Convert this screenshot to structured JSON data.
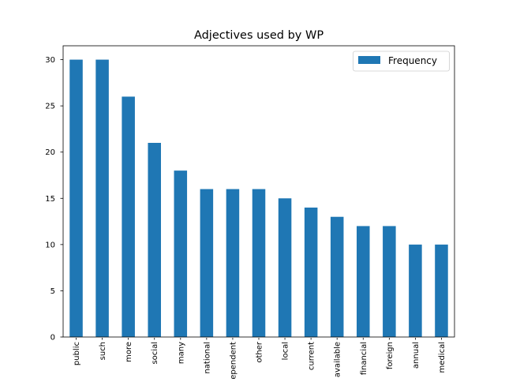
{
  "chart_data": {
    "type": "bar",
    "title": "Adjectives used by WP",
    "xlabel": "",
    "ylabel": "",
    "categories": [
      "public",
      "such",
      "more",
      "social",
      "many",
      "national",
      "independent",
      "other",
      "local",
      "current",
      "available",
      "financial",
      "foreign",
      "annual",
      "medical"
    ],
    "series": [
      {
        "name": "Frequency",
        "values": [
          30,
          30,
          26,
          21,
          18,
          16,
          16,
          16,
          15,
          14,
          13,
          12,
          12,
          10,
          10
        ],
        "color": "#1f77b4"
      }
    ],
    "ylim": [
      0,
      31.5
    ],
    "yticks": [
      0,
      5,
      10,
      15,
      20,
      25,
      30
    ],
    "grid": false,
    "legend_position": "top-right"
  }
}
